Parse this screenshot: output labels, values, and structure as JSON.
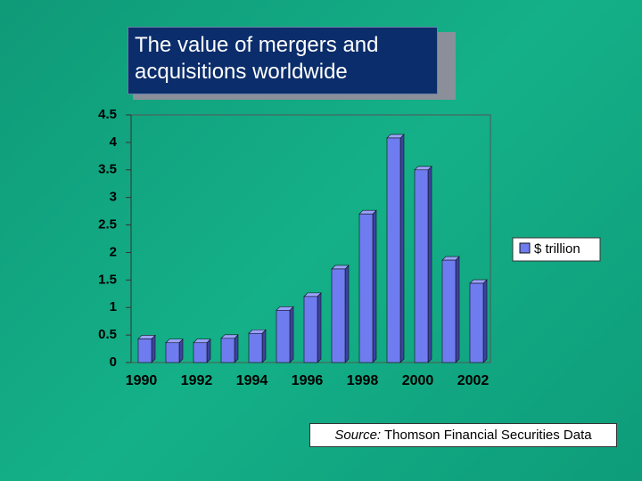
{
  "chart_data": {
    "type": "bar",
    "title": "The value of mergers and acquisitions worldwide",
    "categories": [
      "1990",
      null,
      "1992",
      null,
      "1994",
      null,
      "1996",
      null,
      "1998",
      null,
      "2000",
      null,
      "2002"
    ],
    "series": [
      {
        "name": "$ trillion",
        "color": "#6f7cf0",
        "values": [
          0.43,
          0.36,
          0.36,
          0.44,
          0.53,
          0.95,
          1.2,
          1.7,
          2.7,
          4.08,
          3.5,
          1.86,
          1.44
        ]
      }
    ],
    "ylim": [
      0,
      4.5
    ],
    "yticks": [
      0,
      0.5,
      1,
      1.5,
      2,
      2.5,
      3,
      3.5,
      4,
      4.5
    ],
    "legend": "right",
    "source": {
      "label": "Source:",
      "text": "Thomson Financial Securities Data"
    }
  }
}
